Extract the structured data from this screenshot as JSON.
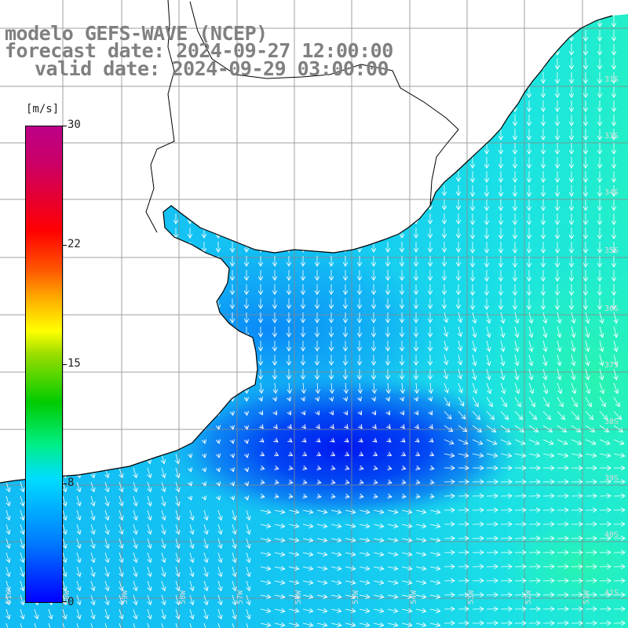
{
  "title": {
    "model": "modelo GEFS-WAVE (NCEP)",
    "forecast": "forecast date: 2024-09-27 12:00:00",
    "valid": "valid date: 2024-09-29 03:00:00"
  },
  "colorbar": {
    "unit": "[m/s]",
    "ticks": [
      "30",
      "22",
      "15",
      "8",
      "0"
    ],
    "tick_values": [
      30,
      22,
      15,
      8,
      0
    ],
    "range": [
      0,
      30
    ]
  },
  "grid": {
    "lat_labels": [
      "31S",
      "33S",
      "34S",
      "35S",
      "36S",
      "37S",
      "38S",
      "39S",
      "40S",
      "41S"
    ],
    "lon_labels": [
      "61W",
      "60W",
      "59W",
      "58W",
      "57W",
      "56W",
      "55W",
      "54W",
      "53W",
      "52W",
      "51W"
    ]
  },
  "colors": {
    "land": "#ffffff",
    "grid_line": "#888888",
    "coast": "#000000",
    "arrow": "#ffffff",
    "title_text": "#808080"
  }
}
